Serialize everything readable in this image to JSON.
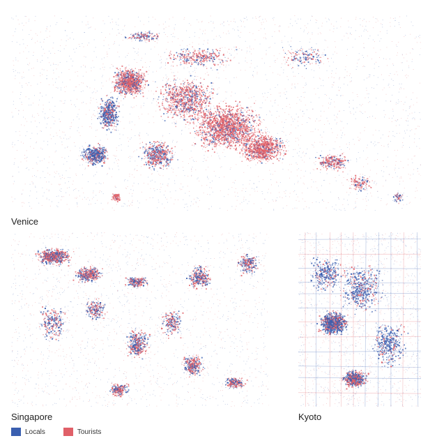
{
  "maps": [
    {
      "id": "venice",
      "label": "Venice"
    },
    {
      "id": "singapore",
      "label": "Singapore"
    },
    {
      "id": "kyoto",
      "label": "Kyoto"
    }
  ],
  "legend": {
    "locals": {
      "label": "Locals",
      "color": "#3a5fb0"
    },
    "tourists": {
      "label": "Tourists",
      "color": "#e06068"
    }
  }
}
